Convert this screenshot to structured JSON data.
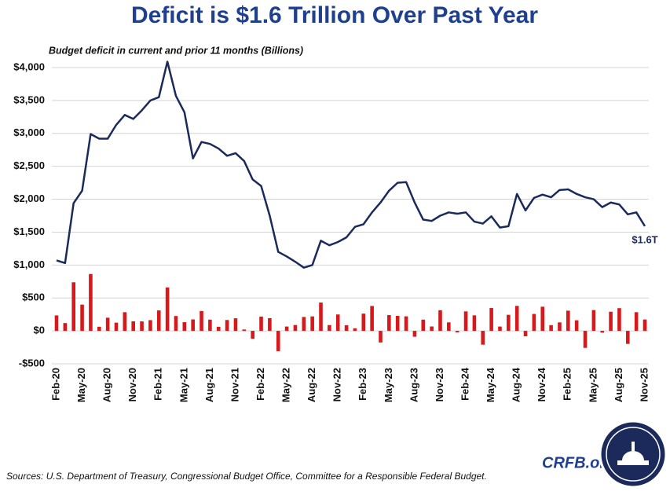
{
  "chart_data": {
    "type": "line",
    "title": "Deficit is $1.6 Trillion Over Past Year",
    "subtitle": "Budget deficit in current and prior 11 months (Billions)",
    "annotation": "$1.6T",
    "source": "Sources: U.S. Department of Treasury, Congressional Budget Office, Committee for a Responsible Federal Budget.",
    "brand": "CRFB.org",
    "categories": [
      "Feb-20",
      null,
      null,
      "May-20",
      null,
      null,
      "Aug-20",
      null,
      null,
      "Nov-20",
      null,
      null,
      "Feb-21",
      null,
      null,
      "May-21",
      null,
      null,
      "Aug-21",
      null,
      null,
      "Nov-21",
      null,
      null,
      "Feb-22",
      null,
      null,
      "May-22",
      null,
      null,
      "Aug-22",
      null,
      null,
      "Nov-22",
      null,
      null,
      "Feb-23",
      null,
      null,
      "May-23",
      null,
      null,
      "Aug-23",
      null,
      null,
      "Nov-23",
      null,
      null,
      "Feb-24",
      null,
      null,
      "May-24",
      null,
      null,
      "Aug-24",
      null,
      null,
      "Nov-24",
      null,
      null,
      "Feb-25",
      null,
      null,
      "May-25",
      null,
      null,
      "Aug-25",
      null,
      null,
      "Nov-25"
    ],
    "series": [
      {
        "type": "bar",
        "color": "#d7191c",
        "values": [
          235,
          119,
          738,
          399,
          864,
          63,
          200,
          125,
          284,
          145,
          144,
          163,
          311,
          660,
          226,
          132,
          174,
          302,
          171,
          62,
          165,
          191,
          21,
          -119,
          217,
          193,
          -308,
          66,
          89,
          211,
          220,
          430,
          88,
          249,
          85,
          39,
          262,
          378,
          -176,
          240,
          228,
          221,
          -89,
          171,
          67,
          314,
          129,
          -22,
          296,
          236,
          -210,
          347,
          66,
          244,
          380,
          -82,
          257,
          367,
          87,
          129,
          307,
          161,
          -258,
          316,
          -27,
          291,
          345,
          -198,
          284,
          173
        ]
      },
      {
        "type": "line",
        "color": "#1b2a5a",
        "values": [
          1070,
          1030,
          1940,
          2130,
          2990,
          2920,
          2920,
          3130,
          3280,
          3220,
          3350,
          3500,
          3550,
          4090,
          3570,
          3320,
          2620,
          2870,
          2840,
          2770,
          2660,
          2700,
          2580,
          2300,
          2200,
          1750,
          1200,
          1130,
          1050,
          960,
          1000,
          1370,
          1300,
          1350,
          1420,
          1580,
          1620,
          1800,
          1950,
          2130,
          2250,
          2260,
          1950,
          1690,
          1670,
          1750,
          1800,
          1780,
          1800,
          1660,
          1630,
          1740,
          1570,
          1590,
          2080,
          1830,
          2020,
          2070,
          2030,
          2140,
          2150,
          2080,
          2030,
          2000,
          1880,
          1950,
          1920,
          1770,
          1800,
          1590
        ]
      }
    ],
    "ylim": [
      -500,
      4000
    ],
    "yticks": [
      {
        "value": -500,
        "label": "-$500"
      },
      {
        "value": 0,
        "label": "$0"
      },
      {
        "value": 500,
        "label": "$500"
      },
      {
        "value": 1000,
        "label": "$1,000"
      },
      {
        "value": 1500,
        "label": "$1,500"
      },
      {
        "value": 2000,
        "label": "$2,000"
      },
      {
        "value": 2500,
        "label": "$2,500"
      },
      {
        "value": 3000,
        "label": "$3,000"
      },
      {
        "value": 3500,
        "label": "$3,500"
      },
      {
        "value": 4000,
        "label": "$4,000"
      }
    ],
    "grid": true
  }
}
